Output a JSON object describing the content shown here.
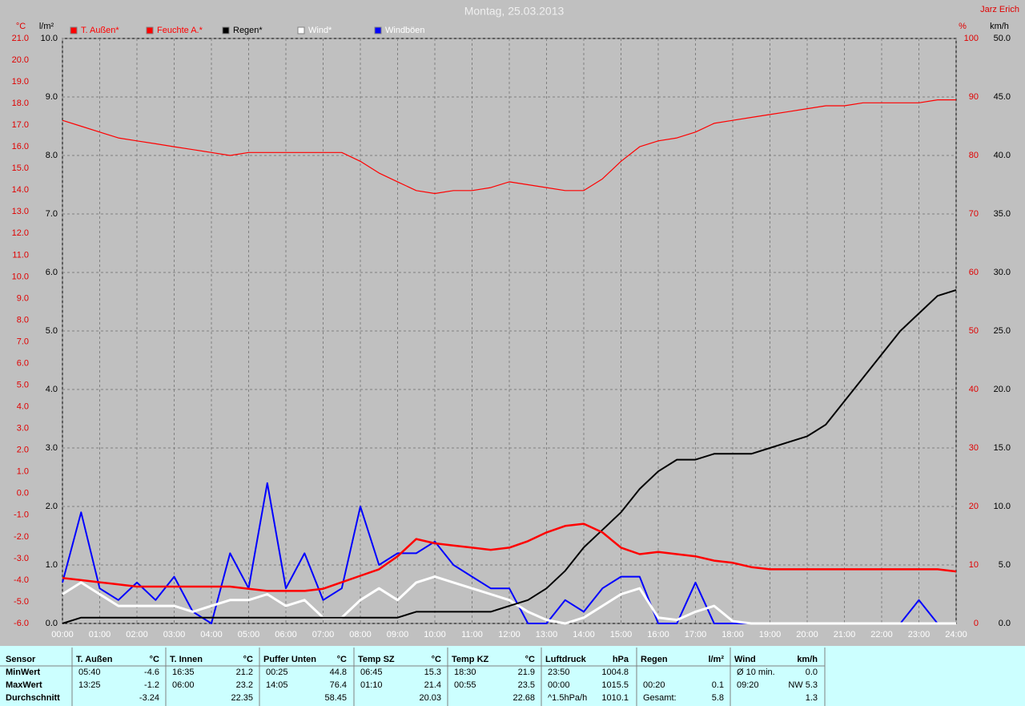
{
  "chart_data": {
    "type": "line",
    "title": "Montag, 25.03.2013",
    "author": "Jarz Erich",
    "ylabel": "°C",
    "y2label": "l/m²",
    "y3label": "%",
    "y4label": "km/h",
    "xlim": [
      0,
      24
    ],
    "xticks": [
      {
        "value": 0,
        "label": "00:00"
      },
      {
        "value": 1,
        "label": "01:00"
      },
      {
        "value": 2,
        "label": "02:00"
      },
      {
        "value": 3,
        "label": "03:00"
      },
      {
        "value": 4,
        "label": "04:00"
      },
      {
        "value": 5,
        "label": "05:00"
      },
      {
        "value": 6,
        "label": "06:00"
      },
      {
        "value": 7,
        "label": "07:00"
      },
      {
        "value": 8,
        "label": "08:00"
      },
      {
        "value": 9,
        "label": "09:00"
      },
      {
        "value": 10,
        "label": "10:00"
      },
      {
        "value": 11,
        "label": "11:00"
      },
      {
        "value": 12,
        "label": "12:00"
      },
      {
        "value": 13,
        "label": "13:00"
      },
      {
        "value": 14,
        "label": "14:00"
      },
      {
        "value": 15,
        "label": "15:00"
      },
      {
        "value": 16,
        "label": "16:00"
      },
      {
        "value": 17,
        "label": "17:00"
      },
      {
        "value": 18,
        "label": "18:00"
      },
      {
        "value": 19,
        "label": "19:00"
      },
      {
        "value": 20,
        "label": "20:00"
      },
      {
        "value": 21,
        "label": "21:00"
      },
      {
        "value": 22,
        "label": "22:00"
      },
      {
        "value": 23,
        "label": "23:00"
      },
      {
        "value": 24,
        "label": "24:00"
      }
    ],
    "ylim": [
      -6,
      21
    ],
    "yticks": [
      {
        "value": -6,
        "label": "-6.0"
      },
      {
        "value": -5,
        "label": "-5.0"
      },
      {
        "value": -4,
        "label": "-4.0"
      },
      {
        "value": -3,
        "label": "-3.0"
      },
      {
        "value": -2,
        "label": "-2.0"
      },
      {
        "value": -1,
        "label": "-1.0"
      },
      {
        "value": 0,
        "label": "0.0"
      },
      {
        "value": 1,
        "label": "1.0"
      },
      {
        "value": 2,
        "label": "2.0"
      },
      {
        "value": 3,
        "label": "3.0"
      },
      {
        "value": 4,
        "label": "4.0"
      },
      {
        "value": 5,
        "label": "5.0"
      },
      {
        "value": 6,
        "label": "6.0"
      },
      {
        "value": 7,
        "label": "7.0"
      },
      {
        "value": 8,
        "label": "8.0"
      },
      {
        "value": 9,
        "label": "9.0"
      },
      {
        "value": 10,
        "label": "10.0"
      },
      {
        "value": 11,
        "label": "11.0"
      },
      {
        "value": 12,
        "label": "12.0"
      },
      {
        "value": 13,
        "label": "13.0"
      },
      {
        "value": 14,
        "label": "14.0"
      },
      {
        "value": 15,
        "label": "15.0"
      },
      {
        "value": 16,
        "label": "16.0"
      },
      {
        "value": 17,
        "label": "17.0"
      },
      {
        "value": 18,
        "label": "18.0"
      },
      {
        "value": 19,
        "label": "19.0"
      },
      {
        "value": 20,
        "label": "20.0"
      },
      {
        "value": 21,
        "label": "21.0"
      }
    ],
    "y2lim": [
      0,
      10
    ],
    "y2ticks": [
      {
        "value": 0,
        "label": "0.0"
      },
      {
        "value": 1,
        "label": "1.0"
      },
      {
        "value": 2,
        "label": "2.0"
      },
      {
        "value": 3,
        "label": "3.0"
      },
      {
        "value": 4,
        "label": "4.0"
      },
      {
        "value": 5,
        "label": "5.0"
      },
      {
        "value": 6,
        "label": "6.0"
      },
      {
        "value": 7,
        "label": "7.0"
      },
      {
        "value": 8,
        "label": "8.0"
      },
      {
        "value": 9,
        "label": "9.0"
      },
      {
        "value": 10,
        "label": "10.0"
      }
    ],
    "y3lim": [
      0,
      100
    ],
    "y3ticks": [
      0,
      10,
      20,
      30,
      40,
      50,
      60,
      70,
      80,
      90,
      100
    ],
    "y4lim": [
      0,
      50
    ],
    "y4ticks": [
      {
        "value": 0,
        "label": "0.0"
      },
      {
        "value": 5,
        "label": "5.0"
      },
      {
        "value": 10,
        "label": "10.0"
      },
      {
        "value": 15,
        "label": "15.0"
      },
      {
        "value": 20,
        "label": "20.0"
      },
      {
        "value": 25,
        "label": "25.0"
      },
      {
        "value": 30,
        "label": "30.0"
      },
      {
        "value": 35,
        "label": "35.0"
      },
      {
        "value": 40,
        "label": "40.0"
      },
      {
        "value": 45,
        "label": "45.0"
      },
      {
        "value": 50,
        "label": "50.0"
      }
    ],
    "grid": true,
    "x": [
      0,
      0.5,
      1,
      1.5,
      2,
      2.5,
      3,
      3.5,
      4,
      4.5,
      5,
      5.5,
      6,
      6.5,
      7,
      7.5,
      8,
      8.5,
      9,
      9.5,
      10,
      10.5,
      11,
      11.5,
      12,
      12.5,
      13,
      13.5,
      14,
      14.5,
      15,
      15.5,
      16,
      16.5,
      17,
      17.5,
      18,
      18.5,
      19,
      19.5,
      20,
      20.5,
      21,
      21.5,
      22,
      22.5,
      23,
      23.5,
      24
    ],
    "series": [
      {
        "name": "T. Außen*",
        "color": "#ff0000",
        "axis": "y",
        "values": [
          -3.9,
          -4.0,
          -4.1,
          -4.2,
          -4.3,
          -4.3,
          -4.3,
          -4.3,
          -4.3,
          -4.3,
          -4.4,
          -4.5,
          -4.5,
          -4.5,
          -4.4,
          -4.1,
          -3.8,
          -3.5,
          -2.9,
          -2.1,
          -2.3,
          -2.4,
          -2.5,
          -2.6,
          -2.5,
          -2.2,
          -1.8,
          -1.5,
          -1.4,
          -1.8,
          -2.5,
          -2.8,
          -2.7,
          -2.8,
          -2.9,
          -3.1,
          -3.2,
          -3.4,
          -3.5,
          -3.5,
          -3.5,
          -3.5,
          -3.5,
          -3.5,
          -3.5,
          -3.5,
          -3.5,
          -3.5,
          -3.6
        ]
      },
      {
        "name": "Feuchte A.*",
        "color": "#ff0000",
        "axis": "y3",
        "values": [
          86,
          85,
          84,
          83,
          82.5,
          82,
          81.5,
          81,
          80.5,
          80,
          80.5,
          80.5,
          80.5,
          80.5,
          80.5,
          80.5,
          79,
          77,
          75.5,
          74,
          73.5,
          74,
          74,
          74.5,
          75.5,
          75,
          74.5,
          74,
          74,
          76,
          79,
          81.5,
          82.5,
          83,
          84,
          85.5,
          86,
          86.5,
          87,
          87.5,
          88,
          88.5,
          88.5,
          89,
          89,
          89,
          89,
          89.5,
          89.5
        ]
      },
      {
        "name": "Regen*",
        "color": "#000000",
        "axis": "y2",
        "values": [
          0,
          0.1,
          0.1,
          0.1,
          0.1,
          0.1,
          0.1,
          0.1,
          0.1,
          0.1,
          0.1,
          0.1,
          0.1,
          0.1,
          0.1,
          0.1,
          0.1,
          0.1,
          0.1,
          0.2,
          0.2,
          0.2,
          0.2,
          0.2,
          0.3,
          0.4,
          0.6,
          0.9,
          1.3,
          1.6,
          1.9,
          2.3,
          2.6,
          2.8,
          2.8,
          2.9,
          2.9,
          2.9,
          3.0,
          3.1,
          3.2,
          3.4,
          3.8,
          4.2,
          4.6,
          5.0,
          5.3,
          5.6,
          5.7
        ]
      },
      {
        "name": "Wind*",
        "color": "#ffffff",
        "axis": "y4",
        "values": [
          2.5,
          3.5,
          2.5,
          1.5,
          1.5,
          1.5,
          1.5,
          1,
          1.5,
          2,
          2,
          2.5,
          1.5,
          2,
          0.5,
          0.5,
          2,
          3,
          2,
          3.5,
          4,
          3.5,
          3,
          2.5,
          2,
          1,
          0.3,
          0,
          0.5,
          1.5,
          2.5,
          3,
          0.5,
          0.3,
          1,
          1.5,
          0.2,
          0,
          0,
          0,
          0,
          0,
          0,
          0,
          0,
          0,
          0,
          0,
          0
        ]
      },
      {
        "name": "Windböen",
        "color": "#0000ff",
        "axis": "y4",
        "values": [
          3.5,
          9.5,
          3,
          2,
          3.5,
          2,
          4,
          1,
          0,
          6,
          3,
          12,
          3,
          6,
          2,
          3,
          10,
          5,
          6,
          6,
          7,
          5,
          4,
          3,
          3,
          0,
          0,
          2,
          1,
          3,
          4,
          4,
          0,
          0,
          3.5,
          0,
          0,
          0,
          0,
          0,
          0,
          0,
          0,
          0,
          0,
          0,
          2,
          0,
          0
        ]
      }
    ]
  },
  "stats": {
    "row_labels": [
      "Sensor",
      "MinWert",
      "MaxWert",
      "Durchschnitt"
    ],
    "columns": [
      {
        "name": "T. Außen",
        "unit": "°C",
        "rows": [
          [
            "05:40",
            "-4.6"
          ],
          [
            "13:25",
            "-1.2"
          ],
          [
            "-3.24"
          ]
        ]
      },
      {
        "name": "T. Innen",
        "unit": "°C",
        "rows": [
          [
            "16:35",
            "21.2"
          ],
          [
            "06:00",
            "23.2"
          ],
          [
            "22.35"
          ]
        ]
      },
      {
        "name": "Puffer Unten",
        "unit": "°C",
        "rows": [
          [
            "00:25",
            "44.8"
          ],
          [
            "14:05",
            "76.4"
          ],
          [
            "58.45"
          ]
        ]
      },
      {
        "name": "Temp SZ",
        "unit": "°C",
        "rows": [
          [
            "06:45",
            "15.3"
          ],
          [
            "01:10",
            "21.4"
          ],
          [
            "20.03"
          ]
        ]
      },
      {
        "name": "Temp KZ",
        "unit": "°C",
        "rows": [
          [
            "18:30",
            "21.9"
          ],
          [
            "00:55",
            "23.5"
          ],
          [
            "22.68"
          ]
        ]
      },
      {
        "name": "Luftdruck",
        "unit": "hPa",
        "rows": [
          [
            "23:50",
            "1004.8"
          ],
          [
            "00:00",
            "1015.5"
          ],
          [
            "^1.5hPa/h",
            "1010.1"
          ]
        ]
      },
      {
        "name": "Regen",
        "unit": "l/m²",
        "rows": [
          [],
          [
            "00:20",
            "0.1"
          ],
          [
            "Gesamt:",
            "5.8"
          ]
        ]
      },
      {
        "name": "Wind",
        "unit": "km/h",
        "rows": [
          [
            "Ø 10 min.",
            "0.0"
          ],
          [
            "09:20",
            "NW 5.3"
          ],
          [
            "1.3"
          ]
        ]
      }
    ]
  }
}
